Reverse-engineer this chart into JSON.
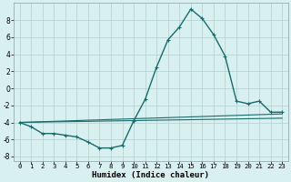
{
  "xlabel": "Humidex (Indice chaleur)",
  "bg_color": "#d8f0f0",
  "line_color": "#1a6b6b",
  "grid_color": "#b8d4d4",
  "xlim": [
    -0.5,
    23.5
  ],
  "ylim": [
    -8.5,
    10.0
  ],
  "yticks": [
    -8,
    -6,
    -4,
    -2,
    0,
    2,
    4,
    6,
    8
  ],
  "xticks": [
    0,
    1,
    2,
    3,
    4,
    5,
    6,
    7,
    8,
    9,
    10,
    11,
    12,
    13,
    14,
    15,
    16,
    17,
    18,
    19,
    20,
    21,
    22,
    23
  ],
  "series": [
    {
      "x": [
        0,
        1,
        2,
        3,
        4,
        5,
        6,
        7,
        8,
        9,
        10,
        11,
        12,
        13,
        14,
        15,
        16,
        17,
        18,
        19,
        20,
        21,
        22,
        23
      ],
      "y": [
        -4.0,
        -4.5,
        -5.3,
        -5.3,
        -5.5,
        -5.7,
        -6.3,
        -7.0,
        -7.0,
        -6.7,
        -3.8,
        -1.3,
        2.5,
        5.7,
        7.2,
        9.3,
        8.2,
        6.3,
        3.8,
        -1.5,
        -1.8,
        -1.5,
        -2.8,
        -2.8
      ]
    },
    {
      "x": [
        0,
        23
      ],
      "y": [
        -4.0,
        -3.0
      ]
    },
    {
      "x": [
        0,
        23
      ],
      "y": [
        -4.0,
        -3.5
      ]
    }
  ]
}
